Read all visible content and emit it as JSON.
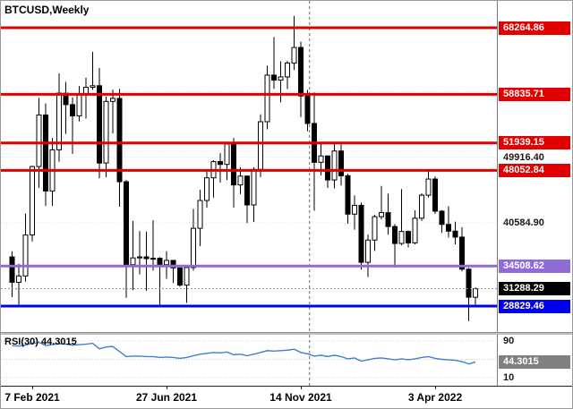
{
  "window": {
    "symbol_timeframe_label": "BTCUSD,Weekly"
  },
  "colors": {
    "background": "#ffffff",
    "resistance_line": "#e00000",
    "support_purple": "#8f6bd6",
    "support_blue": "#0000ee",
    "current_price_bg": "#000000",
    "rsi_line": "#3f80cc",
    "bull_candle": "#ffffff",
    "bear_candle": "#000000",
    "candle_outline": "#000000",
    "grid": "#d9d9d9",
    "current_price_line": "#8a8a8a",
    "period_separator": "#666666"
  },
  "price_scale": {
    "plain_labels": [
      {
        "text": "49916.40",
        "price": 49916.4
      },
      {
        "text": "40584.90",
        "price": 40584.9
      }
    ]
  },
  "chart_data": {
    "type": "candlestick",
    "symbol": "BTCUSD",
    "timeframe": "Weekly",
    "y_axis": {
      "top_price": 72069,
      "bottom_price": 25026
    },
    "horizontal_lines": [
      {
        "label": "68264.86",
        "price": 68264.86,
        "color": "#e00000",
        "thickness": 3,
        "kind": "resistance"
      },
      {
        "label": "58835.71",
        "price": 58835.71,
        "color": "#e00000",
        "thickness": 3,
        "kind": "resistance"
      },
      {
        "label": "51939.15",
        "price": 51939.15,
        "color": "#e00000",
        "thickness": 3,
        "kind": "resistance"
      },
      {
        "label": "48052.84",
        "price": 48052.84,
        "color": "#e00000",
        "thickness": 3,
        "kind": "resistance"
      },
      {
        "label": "34508.62",
        "price": 34508.62,
        "color": "#8f6bd6",
        "thickness": 3,
        "kind": "support"
      },
      {
        "label": "28829.46",
        "price": 28829.46,
        "color": "#0000ee",
        "thickness": 3,
        "kind": "support"
      }
    ],
    "current_price": {
      "label": "31288.29",
      "price": 31288.29
    },
    "gridline_prices": [
      59247.9,
      49916.4,
      40584.9
    ],
    "time_axis": [
      {
        "text": "7 Feb 2021",
        "week_index": 3
      },
      {
        "text": "27 Jun 2021",
        "week_index": 23
      },
      {
        "text": "14 Nov 2021",
        "week_index": 43
      },
      {
        "text": "3 Apr 2022",
        "week_index": 63
      }
    ],
    "period_separator_week_index": 44.3,
    "candles": [
      [
        35800,
        36600,
        30100,
        32200
      ],
      [
        32200,
        34800,
        29000,
        33100
      ],
      [
        33100,
        41950,
        32300,
        38900
      ],
      [
        38900,
        48700,
        37990,
        48600
      ],
      [
        48600,
        58350,
        45570,
        55900
      ],
      [
        55900,
        57550,
        43000,
        45140
      ],
      [
        45140,
        52650,
        43020,
        50970
      ],
      [
        50970,
        61800,
        49270,
        59000
      ],
      [
        59000,
        60600,
        53220,
        57370
      ],
      [
        57370,
        58400,
        50400,
        55780
      ],
      [
        55780,
        60000,
        55000,
        58750
      ],
      [
        58750,
        61200,
        55400,
        59830
      ],
      [
        59830,
        64850,
        59470,
        60050
      ],
      [
        60050,
        62570,
        46930,
        49100
      ],
      [
        49100,
        58500,
        47080,
        57830
      ],
      [
        57830,
        59500,
        53300,
        58250
      ],
      [
        58250,
        59600,
        42900,
        46450
      ],
      [
        46450,
        46700,
        30000,
        34700
      ],
      [
        34700,
        40900,
        31100,
        35660
      ],
      [
        35660,
        39470,
        33330,
        35800
      ],
      [
        35800,
        39380,
        31000,
        35550
      ],
      [
        35550,
        41000,
        33850,
        35600
      ],
      [
        35600,
        35750,
        28805,
        34700
      ],
      [
        34700,
        36600,
        32700,
        35300
      ],
      [
        35300,
        35300,
        32100,
        34240
      ],
      [
        34240,
        34640,
        31550,
        31800
      ],
      [
        31800,
        34500,
        29296,
        34290
      ],
      [
        34290,
        42600,
        33850,
        39850
      ],
      [
        39850,
        45300,
        37330,
        43790
      ],
      [
        43790,
        48150,
        42780,
        47000
      ],
      [
        47000,
        49500,
        44200,
        49300
      ],
      [
        49300,
        50500,
        46350,
        48900
      ],
      [
        48900,
        51000,
        46700,
        51780
      ],
      [
        51780,
        52650,
        42800,
        46000
      ],
      [
        46000,
        48500,
        44700,
        47250
      ],
      [
        47250,
        47350,
        40600,
        43160
      ],
      [
        43160,
        48500,
        40750,
        48200
      ],
      [
        48200,
        56000,
        47100,
        54950
      ],
      [
        54950,
        62900,
        53880,
        61550
      ],
      [
        61550,
        66950,
        59600,
        60850
      ],
      [
        60850,
        63500,
        57700,
        61300
      ],
      [
        61300,
        63550,
        59580,
        63270
      ],
      [
        63270,
        69950,
        62280,
        65470
      ],
      [
        65470,
        66280,
        55600,
        58600
      ],
      [
        58600,
        59450,
        53600,
        54700
      ],
      [
        54700,
        59100,
        42330,
        49200
      ],
      [
        49200,
        51900,
        47320,
        50100
      ],
      [
        50100,
        50200,
        45560,
        46700
      ],
      [
        46700,
        51880,
        45500,
        50800
      ],
      [
        50800,
        52100,
        45900,
        47300
      ],
      [
        47300,
        47570,
        40500,
        41860
      ],
      [
        41860,
        44500,
        39660,
        43100
      ],
      [
        43100,
        43500,
        34000,
        35030
      ],
      [
        35030,
        38950,
        32930,
        38180
      ],
      [
        38180,
        41750,
        36650,
        41500
      ],
      [
        41500,
        45850,
        41100,
        42070
      ],
      [
        42070,
        44750,
        38940,
        40100
      ],
      [
        40100,
        40450,
        34300,
        37700
      ],
      [
        37700,
        45400,
        37450,
        39400
      ],
      [
        39400,
        39550,
        37155,
        37790
      ],
      [
        37790,
        42400,
        37580,
        41280
      ],
      [
        41280,
        44800,
        40900,
        44540
      ],
      [
        44540,
        48240,
        44200,
        46830
      ],
      [
        46830,
        47200,
        41870,
        42280
      ],
      [
        42280,
        42420,
        39200,
        40400
      ],
      [
        40400,
        42970,
        38540,
        39450
      ],
      [
        39450,
        40800,
        37580,
        38600
      ],
      [
        38600,
        40000,
        33750,
        34060
      ],
      [
        34060,
        34240,
        26700,
        30080
      ],
      [
        30080,
        31460,
        28650,
        31288
      ]
    ],
    "rsi": {
      "label": "RSI(30) 44.3015",
      "period": 30,
      "current_value": 44.3015,
      "scale_labels": [
        90,
        10
      ],
      "levels": [
        90,
        50,
        10
      ],
      "values": [
        80,
        79,
        81,
        85,
        87,
        80,
        82,
        84,
        83,
        81,
        82,
        83,
        85,
        73,
        77,
        78,
        67,
        56,
        57,
        57,
        56,
        56,
        54,
        55,
        54,
        52,
        54,
        58,
        61,
        63,
        65,
        64,
        66,
        60,
        61,
        58,
        61,
        65,
        69,
        68,
        69,
        70,
        72,
        65,
        62,
        57,
        59,
        56,
        59,
        56,
        51,
        53,
        46,
        49,
        52,
        53,
        51,
        49,
        51,
        49,
        51,
        54,
        56,
        52,
        50,
        49,
        48,
        45,
        40,
        44.3
      ]
    }
  }
}
